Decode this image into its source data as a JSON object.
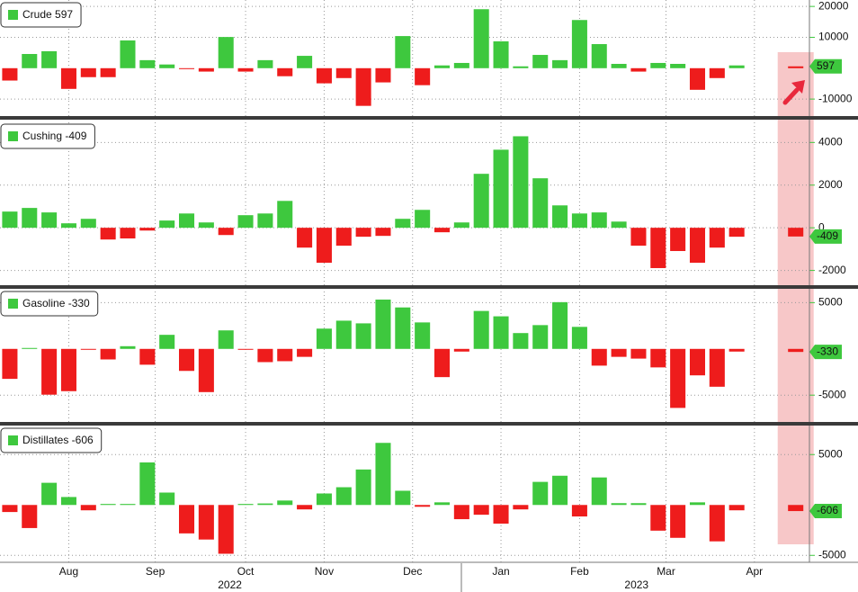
{
  "chart_data": [
    {
      "type": "bar",
      "title": "Crude 597",
      "x": [
        0,
        1,
        2,
        3,
        4,
        5,
        6,
        7,
        8,
        9,
        10,
        11,
        12,
        13,
        14,
        15,
        16,
        17,
        18,
        19,
        20,
        21,
        22,
        23,
        24,
        25,
        26,
        27,
        28,
        29,
        30,
        31,
        32,
        33,
        34,
        35,
        36,
        37,
        40
      ],
      "values": [
        -4000,
        4600,
        5500,
        -6700,
        -2900,
        -2900,
        9000,
        2600,
        1200,
        -300,
        -1100,
        10100,
        -1100,
        2600,
        -2600,
        4000,
        -4900,
        -3200,
        -12200,
        -4600,
        10400,
        -5500,
        900,
        1700,
        19100,
        8700,
        600,
        4300,
        2600,
        15600,
        7800,
        1400,
        -1100,
        1700,
        1400,
        -7000,
        -3200,
        900,
        597
      ],
      "ylim": [
        -15500,
        21500
      ],
      "yticks": [
        -10000,
        10000,
        20000
      ],
      "colors": {
        "up": "#3ec83e",
        "down": "#ee1c1c",
        "latest": "#ee1c1c"
      }
    },
    {
      "type": "bar",
      "title": "Cushing -409",
      "x": [
        0,
        1,
        2,
        3,
        4,
        5,
        6,
        7,
        8,
        9,
        10,
        11,
        12,
        13,
        14,
        15,
        16,
        17,
        18,
        19,
        20,
        21,
        22,
        23,
        24,
        25,
        26,
        27,
        28,
        29,
        30,
        31,
        32,
        33,
        34,
        35,
        36,
        37,
        40
      ],
      "values": [
        760,
        930,
        720,
        210,
        420,
        -550,
        -500,
        -130,
        340,
        670,
        250,
        -340,
        590,
        670,
        1260,
        -930,
        -1640,
        -840,
        -420,
        -380,
        420,
        840,
        -210,
        250,
        2530,
        3660,
        4290,
        2320,
        1050,
        670,
        720,
        290,
        -840,
        -1890,
        -1090,
        -1640,
        -930,
        -420,
        -409
      ],
      "ylim": [
        -2650,
        4900
      ],
      "yticks": [
        -2000,
        0,
        2000,
        4000
      ],
      "colors": {
        "up": "#3ec83e",
        "down": "#ee1c1c",
        "latest": "#ee1c1c"
      }
    },
    {
      "type": "bar",
      "title": "Gasoline -330",
      "x": [
        0,
        1,
        2,
        3,
        4,
        5,
        6,
        7,
        8,
        9,
        10,
        11,
        12,
        13,
        14,
        15,
        16,
        17,
        18,
        19,
        20,
        21,
        22,
        23,
        24,
        25,
        26,
        27,
        28,
        29,
        30,
        31,
        32,
        33,
        34,
        35,
        36,
        37,
        40
      ],
      "values": [
        -3240,
        100,
        -4950,
        -4570,
        -50,
        -1140,
        290,
        -1710,
        1520,
        -2380,
        -4670,
        2000,
        -50,
        -1430,
        -1330,
        -860,
        2190,
        3050,
        2760,
        5330,
        4480,
        2860,
        -3050,
        -290,
        4100,
        3520,
        1710,
        2570,
        5050,
        2380,
        -1810,
        -860,
        -1050,
        -2000,
        -6380,
        -2860,
        -4090,
        -290,
        -330
      ],
      "ylim": [
        -7800,
        6300
      ],
      "yticks": [
        -5000,
        5000
      ],
      "colors": {
        "up": "#3ec83e",
        "down": "#ee1c1c",
        "latest": "#ee1c1c"
      }
    },
    {
      "type": "bar",
      "title": "Distillates -606",
      "x": [
        0,
        1,
        2,
        3,
        4,
        5,
        6,
        7,
        8,
        9,
        10,
        11,
        12,
        13,
        14,
        15,
        16,
        17,
        18,
        19,
        20,
        21,
        22,
        23,
        24,
        25,
        26,
        27,
        28,
        29,
        30,
        31,
        32,
        33,
        34,
        35,
        36,
        37,
        40
      ],
      "values": [
        -700,
        -2290,
        2200,
        790,
        -530,
        100,
        100,
        4220,
        1230,
        -2820,
        -3430,
        -4840,
        100,
        150,
        440,
        -440,
        1140,
        1760,
        3520,
        6160,
        1410,
        -180,
        260,
        -1410,
        -970,
        -1850,
        -440,
        2290,
        2900,
        -1140,
        2730,
        180,
        180,
        -2550,
        -3260,
        260,
        -3610,
        -530,
        -606
      ],
      "ylim": [
        -5600,
        7700
      ],
      "yticks": [
        -5000,
        5000
      ],
      "colors": {
        "up": "#3ec83e",
        "down": "#ee1c1c",
        "latest": "#ee1c1c"
      }
    }
  ],
  "x_axis": {
    "xlim": [
      -0.5,
      40.7
    ],
    "xticks": [
      {
        "value": 3,
        "label": "Aug"
      },
      {
        "value": 7.4,
        "label": "Sep"
      },
      {
        "value": 12,
        "label": "Oct"
      },
      {
        "value": 16,
        "label": "Nov"
      },
      {
        "value": 20.5,
        "label": "Dec"
      },
      {
        "value": 25,
        "label": "Jan"
      },
      {
        "value": 29,
        "label": "Feb"
      },
      {
        "value": 33.4,
        "label": "Mar"
      },
      {
        "value": 37.9,
        "label": "Apr"
      }
    ],
    "year_ticks": [
      {
        "value": 11.2,
        "label": "2022"
      },
      {
        "value": 31.9,
        "label": "2023"
      }
    ]
  }
}
